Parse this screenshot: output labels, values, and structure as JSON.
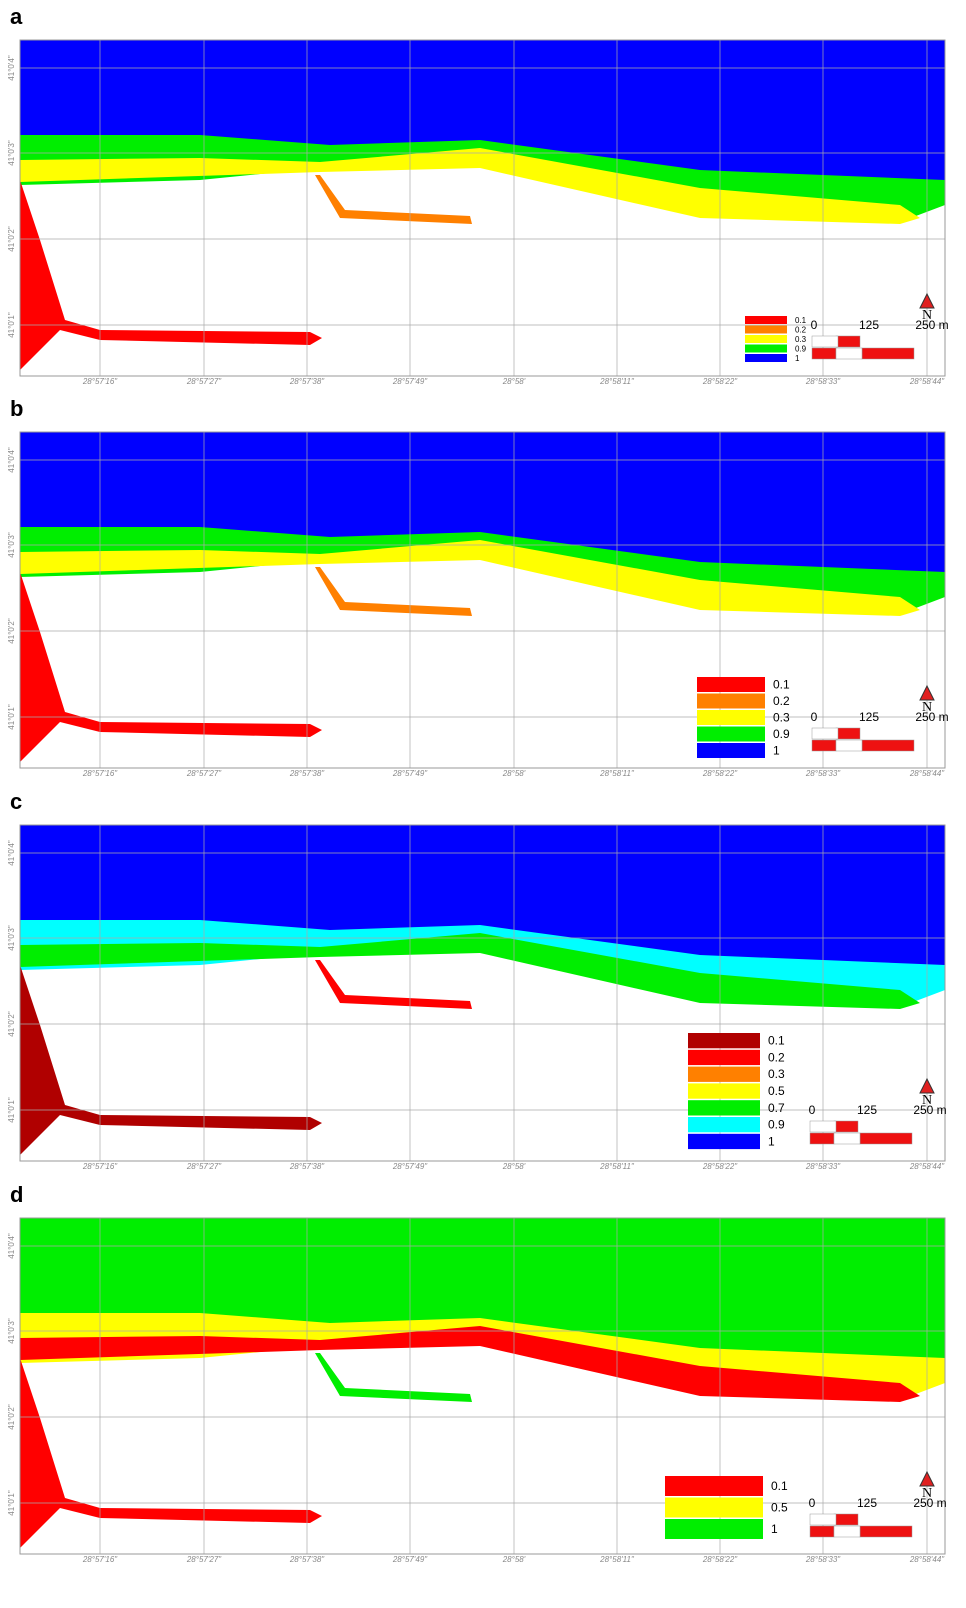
{
  "panels": [
    {
      "label": "a",
      "legend": [
        {
          "label": "0.1",
          "color": "#ff0000"
        },
        {
          "label": "0.2",
          "color": "#ff8000"
        },
        {
          "label": "0.3",
          "color": "#ffff00"
        },
        {
          "label": "0.9",
          "color": "#00ee00"
        },
        {
          "label": "1",
          "color": "#0000ff"
        }
      ]
    },
    {
      "label": "b",
      "legend": [
        {
          "label": "0.1",
          "color": "#ff0000"
        },
        {
          "label": "0.2",
          "color": "#ff8000"
        },
        {
          "label": "0.3",
          "color": "#ffff00"
        },
        {
          "label": "0.9",
          "color": "#00ee00"
        },
        {
          "label": "1",
          "color": "#0000ff"
        }
      ]
    },
    {
      "label": "c",
      "legend": [
        {
          "label": "0.1",
          "color": "#b00000"
        },
        {
          "label": "0.2",
          "color": "#ff0000"
        },
        {
          "label": "0.3",
          "color": "#ff8000"
        },
        {
          "label": "0.5",
          "color": "#ffff00"
        },
        {
          "label": "0.7",
          "color": "#00ee00"
        },
        {
          "label": "0.9",
          "color": "#00ffff"
        },
        {
          "label": "1",
          "color": "#0000ff"
        }
      ]
    },
    {
      "label": "d",
      "legend": [
        {
          "label": "0.1",
          "color": "#ff0000"
        },
        {
          "label": "0.5",
          "color": "#ffff00"
        },
        {
          "label": "1",
          "color": "#00ee00"
        }
      ]
    }
  ],
  "lon_labels": [
    "28°57'16\"",
    "28°57'27\"",
    "28°57'38\"",
    "28°57'49\"",
    "28°58'",
    "28°58'11\"",
    "28°58'22\"",
    "28°58'33\"",
    "28°58'44\""
  ],
  "lat_labels": [
    "41°0'4\"",
    "41°0'3\"",
    "41°0'2\"",
    "41°0'1\""
  ],
  "scale": {
    "labels": [
      "0",
      "125",
      "250 m"
    ]
  },
  "north": "N"
}
